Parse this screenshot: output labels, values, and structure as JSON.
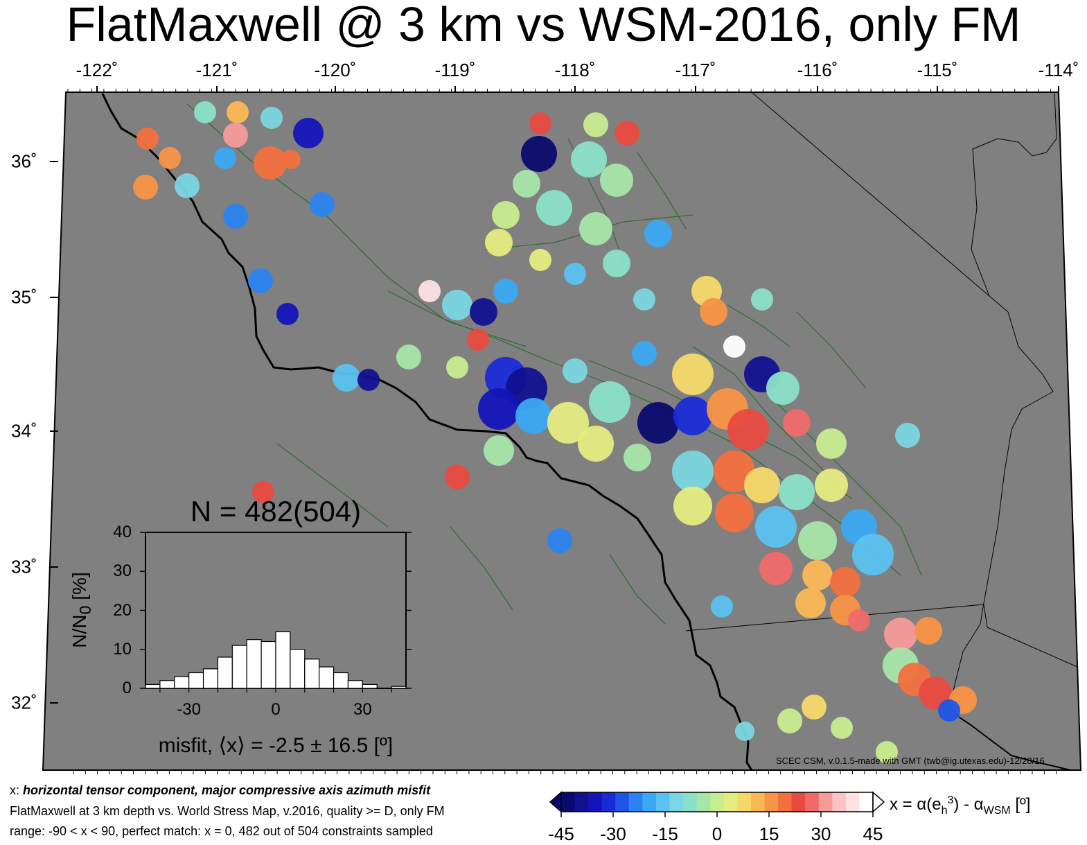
{
  "title": "FlatMaxwell @ 3 km vs WSM-2016, only FM",
  "map": {
    "lon_ticks": [
      "-122˚",
      "-121˚",
      "-120˚",
      "-119˚",
      "-118˚",
      "-117˚",
      "-116˚",
      "-115˚",
      "-114˚"
    ],
    "lat_ticks": [
      "36˚",
      "35˚",
      "34˚",
      "33˚",
      "32˚"
    ],
    "background_color": "#808080",
    "coast_color": "#000000",
    "fault_color": "#2e6b2e",
    "credit": "SCEC CSM, v.0.1.5-made with GMT (twb@ig.utexas.edu)-12/28/16"
  },
  "histogram": {
    "title": "N = 482(504)",
    "ylabel_base": "N/N",
    "ylabel_sub": "0",
    "ylabel_unit": " [%]",
    "xlabel": "misfit, ⟨x⟩ = -2.5 ± 16.5 [º]",
    "y_ticks": [
      "40",
      "30",
      "20",
      "10",
      "0"
    ],
    "x_ticks": [
      "-30",
      "0",
      "30"
    ]
  },
  "chart_data": {
    "type": "bar",
    "title": "N = 482(504)",
    "xlabel": "misfit, ⟨x⟩ = -2.5 ± 16.5 [º]",
    "ylabel": "N/N0 [%]",
    "bin_edges": [
      -45,
      -40,
      -35,
      -30,
      -25,
      -20,
      -15,
      -10,
      -5,
      0,
      5,
      10,
      15,
      20,
      25,
      30,
      35,
      40,
      45
    ],
    "values": [
      1,
      2,
      3,
      4,
      5,
      8,
      11,
      12.5,
      12,
      14.5,
      10,
      7.5,
      5.5,
      4,
      2,
      1,
      0,
      0.5
    ],
    "xlim": [
      -45,
      45
    ],
    "ylim": [
      0,
      40
    ]
  },
  "caption": {
    "line1_prefix": "x: ",
    "line1_bold": "horizontal tensor component, major compressive axis azimuth misfit",
    "line2": "FlatMaxwell at 3 km depth vs.  World Stress Map, v.2016, quality >= D, only FM",
    "line3": "range: -90 < x < 90, perfect match: x = 0, 482 out of 504 constraints sampled"
  },
  "colorbar": {
    "ticks": [
      "-45",
      "-30",
      "-15",
      "0",
      "15",
      "30",
      "45"
    ],
    "label_prefix": "x = α(e",
    "label_sub": "h",
    "label_sup": "3",
    "label_mid": ") - α",
    "label_sub2": "WSM",
    "label_unit": " [º]",
    "colors": [
      "#0a0a6e",
      "#11118f",
      "#1414b8",
      "#1a2bd6",
      "#1f55e6",
      "#2b83f0",
      "#3aa8f2",
      "#5ac2f0",
      "#7ad6e2",
      "#8ae0c8",
      "#a6e6a8",
      "#c8ec90",
      "#e6ec80",
      "#f6d86a",
      "#fab855",
      "#f89446",
      "#f2703e",
      "#e84a40",
      "#f06a6a",
      "#f69a9a",
      "#fac4c4",
      "#fde2e2",
      "#ffffff"
    ]
  }
}
